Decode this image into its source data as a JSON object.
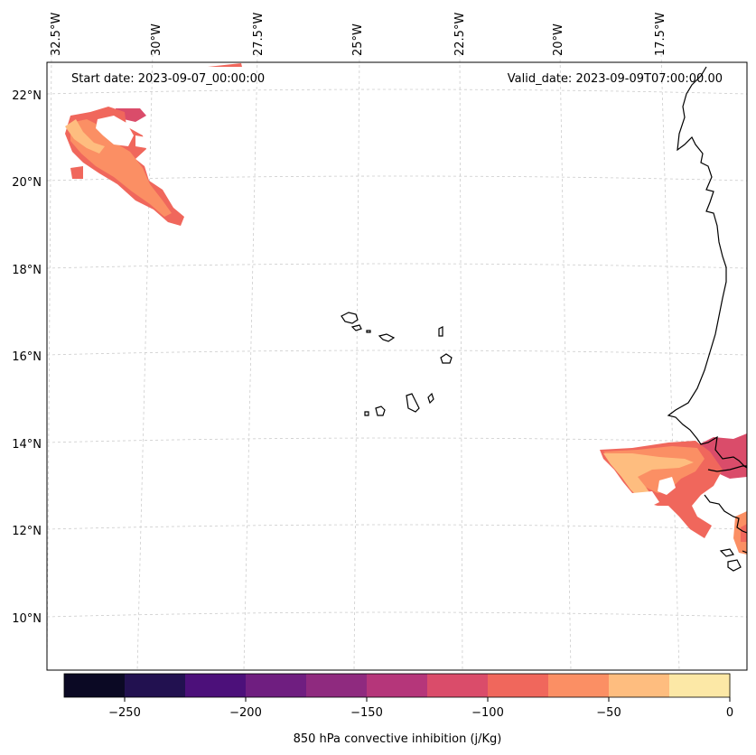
{
  "header": {
    "start_date": "Start date: 2023-09-07_00:00:00",
    "valid_date": "Valid_date: 2023-09-09T07:00:00.00"
  },
  "map": {
    "lon_labels": [
      "32.5°W",
      "30°W",
      "27.5°W",
      "25°W",
      "22.5°W",
      "20°W",
      "17.5°W"
    ],
    "lat_labels": [
      "22°N",
      "20°N",
      "18°N",
      "16°N",
      "14°N",
      "12°N",
      "10°N"
    ],
    "extent_lon": [
      -32.5,
      -15.0
    ],
    "extent_lat": [
      8.9,
      22.8
    ],
    "gridlines": true
  },
  "colorbar": {
    "label": "850 hPa convective inhibition (j/Kg)",
    "tick_labels": [
      "−250",
      "−200",
      "−150",
      "−100",
      "−50",
      "0"
    ],
    "levels": [
      -275,
      -250,
      -225,
      -200,
      -175,
      -150,
      -125,
      -100,
      -75,
      -50,
      -25,
      0
    ],
    "colors": [
      "#0b0924",
      "#221150",
      "#4c107a",
      "#6f1e80",
      "#8f2a7f",
      "#b5367a",
      "#da4c6a",
      "#f0675c",
      "#fb8f64",
      "#febd7f",
      "#fce8a6"
    ]
  },
  "regions": [
    {
      "name": "cin-area-northwest",
      "value_range": [
        -125,
        -25
      ]
    },
    {
      "name": "cin-area-senegal-gambia",
      "value_range": [
        -125,
        -25
      ]
    }
  ]
}
